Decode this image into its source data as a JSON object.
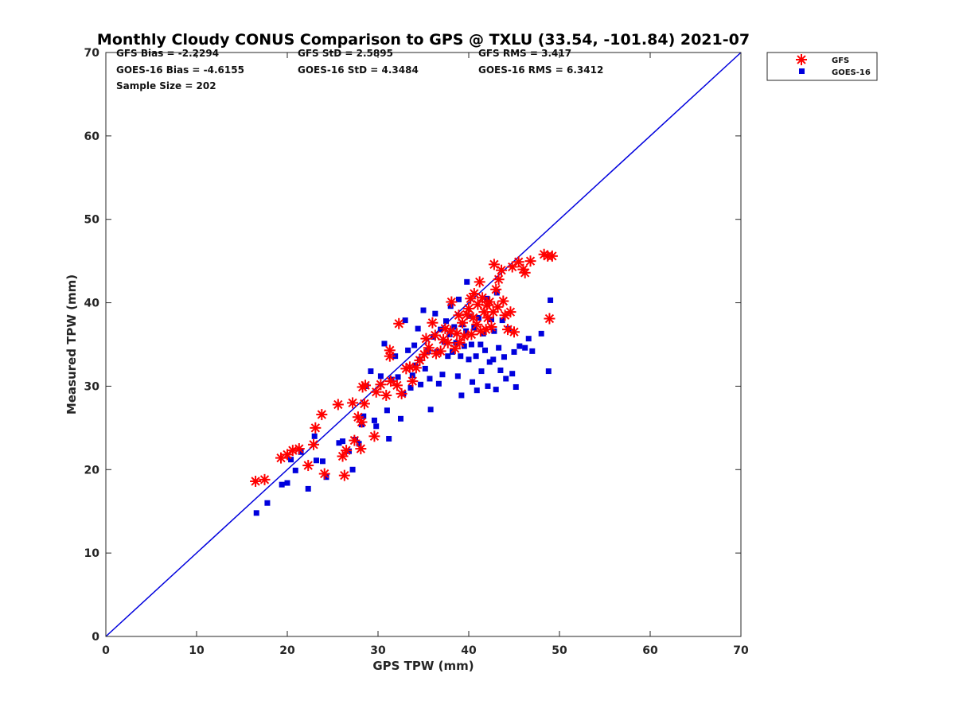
{
  "chart_data": {
    "type": "scatter",
    "title": "Monthly Cloudy CONUS Comparison to GPS @ TXLU (33.54, -101.84) 2021-07",
    "xlabel": "GPS TPW (mm)",
    "ylabel": "Measured TPW (mm)",
    "xlim": [
      0,
      70
    ],
    "ylim": [
      0,
      70
    ],
    "xticks": [
      0,
      10,
      20,
      30,
      40,
      50,
      60,
      70
    ],
    "yticks": [
      0,
      10,
      20,
      30,
      40,
      50,
      60,
      70
    ],
    "grid": false,
    "legend_position": "top-right, outside plot",
    "reference_line": {
      "x": [
        0,
        70
      ],
      "y": [
        0,
        70
      ],
      "color": "#0000dd"
    },
    "stats": [
      [
        "GFS Bias = -2.2294",
        "GFS StD = 2.5895",
        "GFS RMS = 3.417"
      ],
      [
        "GOES-16 Bias = -4.6155",
        "GOES-16 StD = 4.3484",
        "GOES-16 RMS = 6.3412"
      ],
      [
        "Sample Size = 202"
      ]
    ],
    "series": [
      {
        "name": "GFS",
        "marker": "asterisk",
        "color": "#ff0000",
        "points": [
          [
            16.5,
            18.6
          ],
          [
            17.5,
            18.8
          ],
          [
            19.3,
            21.4
          ],
          [
            20.0,
            21.8
          ],
          [
            20.6,
            22.3
          ],
          [
            21.3,
            22.5
          ],
          [
            22.3,
            20.5
          ],
          [
            22.9,
            23.0
          ],
          [
            23.1,
            25.0
          ],
          [
            23.8,
            26.6
          ],
          [
            24.1,
            19.5
          ],
          [
            25.6,
            27.8
          ],
          [
            26.1,
            21.6
          ],
          [
            26.3,
            19.3
          ],
          [
            26.5,
            22.3
          ],
          [
            27.2,
            28.0
          ],
          [
            27.4,
            23.5
          ],
          [
            27.8,
            26.3
          ],
          [
            28.1,
            22.5
          ],
          [
            28.2,
            25.7
          ],
          [
            28.3,
            29.9
          ],
          [
            28.5,
            27.9
          ],
          [
            28.6,
            30.1
          ],
          [
            29.6,
            24.0
          ],
          [
            29.8,
            29.3
          ],
          [
            30.3,
            30.2
          ],
          [
            30.9,
            28.9
          ],
          [
            31.3,
            33.6
          ],
          [
            31.3,
            34.3
          ],
          [
            31.4,
            30.6
          ],
          [
            32.1,
            30.1
          ],
          [
            32.3,
            37.5
          ],
          [
            32.6,
            29.1
          ],
          [
            33.1,
            32.1
          ],
          [
            33.5,
            32.3
          ],
          [
            33.8,
            30.6
          ],
          [
            34.2,
            32.2
          ],
          [
            34.6,
            33.1
          ],
          [
            35.1,
            33.8
          ],
          [
            35.3,
            35.7
          ],
          [
            35.6,
            34.6
          ],
          [
            36.0,
            37.6
          ],
          [
            36.3,
            36.1
          ],
          [
            36.4,
            33.9
          ],
          [
            36.9,
            34.2
          ],
          [
            37.2,
            35.6
          ],
          [
            37.4,
            36.9
          ],
          [
            37.7,
            35.2
          ],
          [
            38.0,
            36.6
          ],
          [
            38.1,
            40.1
          ],
          [
            38.5,
            34.5
          ],
          [
            38.7,
            36.3
          ],
          [
            38.9,
            38.5
          ],
          [
            39.0,
            35.2
          ],
          [
            39.3,
            37.6
          ],
          [
            39.5,
            36.0
          ],
          [
            39.8,
            38.6
          ],
          [
            40.0,
            39.3
          ],
          [
            40.2,
            40.5
          ],
          [
            40.3,
            36.2
          ],
          [
            40.5,
            38.2
          ],
          [
            40.6,
            41.1
          ],
          [
            40.9,
            37.4
          ],
          [
            41.0,
            39.8
          ],
          [
            41.2,
            42.5
          ],
          [
            41.3,
            36.6
          ],
          [
            41.5,
            40.6
          ],
          [
            41.7,
            38.9
          ],
          [
            41.9,
            36.8
          ],
          [
            42.0,
            39.7
          ],
          [
            42.1,
            38.2
          ],
          [
            42.3,
            40.1
          ],
          [
            42.5,
            37.1
          ],
          [
            42.7,
            38.9
          ],
          [
            42.8,
            44.6
          ],
          [
            43.0,
            41.6
          ],
          [
            43.2,
            39.5
          ],
          [
            43.3,
            42.8
          ],
          [
            43.6,
            43.9
          ],
          [
            43.8,
            40.2
          ],
          [
            44.0,
            38.5
          ],
          [
            44.3,
            36.8
          ],
          [
            44.6,
            38.9
          ],
          [
            44.8,
            44.3
          ],
          [
            45.0,
            36.5
          ],
          [
            45.5,
            44.9
          ],
          [
            46.0,
            44.0
          ],
          [
            46.2,
            43.6
          ],
          [
            46.8,
            45.0
          ],
          [
            48.3,
            45.8
          ],
          [
            48.7,
            45.6
          ],
          [
            48.9,
            38.1
          ],
          [
            49.2,
            45.6
          ]
        ]
      },
      {
        "name": "GOES-16",
        "marker": "square",
        "color": "#0000dd",
        "points": [
          [
            16.6,
            14.8
          ],
          [
            17.8,
            16.0
          ],
          [
            19.4,
            18.2
          ],
          [
            20.0,
            18.4
          ],
          [
            20.4,
            21.2
          ],
          [
            20.9,
            19.9
          ],
          [
            21.5,
            22.1
          ],
          [
            22.3,
            17.7
          ],
          [
            23.0,
            24.0
          ],
          [
            23.2,
            21.1
          ],
          [
            23.9,
            21.0
          ],
          [
            24.3,
            19.1
          ],
          [
            25.7,
            23.2
          ],
          [
            26.1,
            23.4
          ],
          [
            26.8,
            22.2
          ],
          [
            27.2,
            20.0
          ],
          [
            27.5,
            23.6
          ],
          [
            27.9,
            23.1
          ],
          [
            28.2,
            25.4
          ],
          [
            28.4,
            26.4
          ],
          [
            28.7,
            30.0
          ],
          [
            29.2,
            31.8
          ],
          [
            29.6,
            25.9
          ],
          [
            29.8,
            25.2
          ],
          [
            30.3,
            31.2
          ],
          [
            30.7,
            35.1
          ],
          [
            31.0,
            27.1
          ],
          [
            31.2,
            23.7
          ],
          [
            31.5,
            30.8
          ],
          [
            31.9,
            33.6
          ],
          [
            32.2,
            31.1
          ],
          [
            32.5,
            26.1
          ],
          [
            32.8,
            29.1
          ],
          [
            33.0,
            37.9
          ],
          [
            33.3,
            34.3
          ],
          [
            33.6,
            29.8
          ],
          [
            33.8,
            31.3
          ],
          [
            34.0,
            34.9
          ],
          [
            34.1,
            32.5
          ],
          [
            34.4,
            36.9
          ],
          [
            34.6,
            33.2
          ],
          [
            34.7,
            30.2
          ],
          [
            35.0,
            39.1
          ],
          [
            35.2,
            32.1
          ],
          [
            35.5,
            34.2
          ],
          [
            35.7,
            30.9
          ],
          [
            35.8,
            27.2
          ],
          [
            36.1,
            35.9
          ],
          [
            36.3,
            38.7
          ],
          [
            36.5,
            34.1
          ],
          [
            36.7,
            30.3
          ],
          [
            36.9,
            36.8
          ],
          [
            37.1,
            31.4
          ],
          [
            37.3,
            35.3
          ],
          [
            37.5,
            37.8
          ],
          [
            37.7,
            33.6
          ],
          [
            37.9,
            36.2
          ],
          [
            38.0,
            39.6
          ],
          [
            38.2,
            34.1
          ],
          [
            38.4,
            37.1
          ],
          [
            38.6,
            35.2
          ],
          [
            38.8,
            31.2
          ],
          [
            38.9,
            40.4
          ],
          [
            39.1,
            33.6
          ],
          [
            39.2,
            28.9
          ],
          [
            39.3,
            37.4
          ],
          [
            39.5,
            34.8
          ],
          [
            39.7,
            36.6
          ],
          [
            39.8,
            42.5
          ],
          [
            40.0,
            33.2
          ],
          [
            40.1,
            38.4
          ],
          [
            40.3,
            35.0
          ],
          [
            40.4,
            30.5
          ],
          [
            40.6,
            37.0
          ],
          [
            40.8,
            33.6
          ],
          [
            40.9,
            29.5
          ],
          [
            41.1,
            38.2
          ],
          [
            41.3,
            35.0
          ],
          [
            41.4,
            31.8
          ],
          [
            41.6,
            36.3
          ],
          [
            41.8,
            34.3
          ],
          [
            42.0,
            40.5
          ],
          [
            42.1,
            30.0
          ],
          [
            42.3,
            32.9
          ],
          [
            42.5,
            38.0
          ],
          [
            42.7,
            33.2
          ],
          [
            42.8,
            36.6
          ],
          [
            43.0,
            29.6
          ],
          [
            43.1,
            41.2
          ],
          [
            43.3,
            34.6
          ],
          [
            43.5,
            31.9
          ],
          [
            43.7,
            37.9
          ],
          [
            43.9,
            33.5
          ],
          [
            44.1,
            30.9
          ],
          [
            44.4,
            36.9
          ],
          [
            44.8,
            31.5
          ],
          [
            45.0,
            34.1
          ],
          [
            45.2,
            29.9
          ],
          [
            45.6,
            34.8
          ],
          [
            46.2,
            34.6
          ],
          [
            46.6,
            35.7
          ],
          [
            47.0,
            34.2
          ],
          [
            48.0,
            36.3
          ],
          [
            48.8,
            31.8
          ],
          [
            49.0,
            40.3
          ]
        ]
      }
    ]
  }
}
